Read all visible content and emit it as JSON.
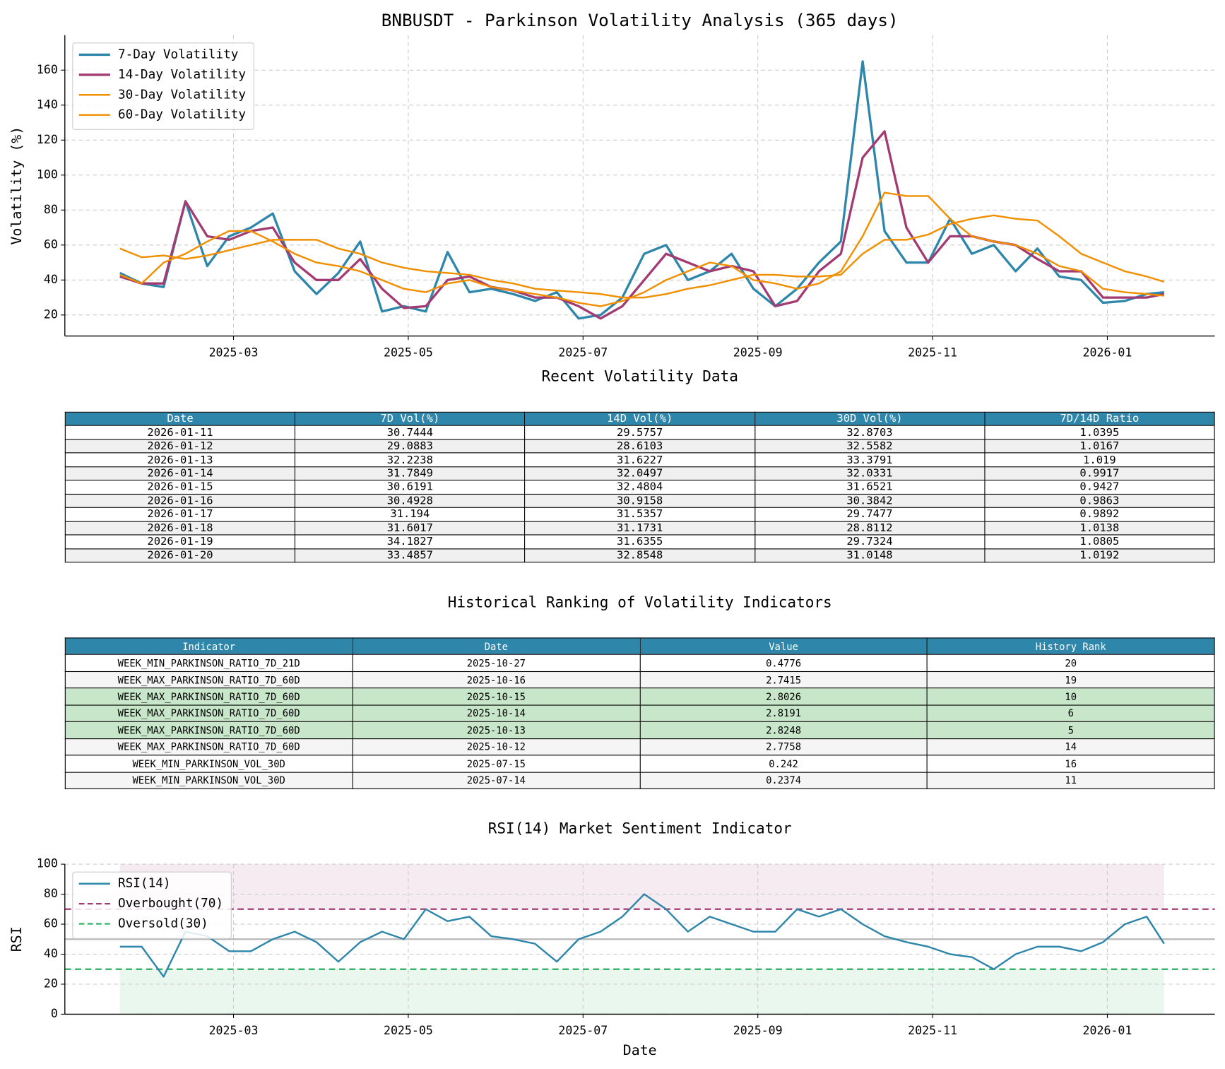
{
  "chart_data": [
    {
      "type": "line",
      "title": "BNBUSDT - Parkinson Volatility Analysis (365 days)",
      "y_label": "Volatility (%)",
      "x": [
        1.7,
        1.95,
        2.2,
        2.45,
        2.7,
        2.95,
        3.2,
        3.45,
        3.7,
        3.95,
        4.2,
        4.45,
        4.7,
        4.95,
        5.2,
        5.45,
        5.7,
        5.95,
        6.2,
        6.45,
        6.7,
        6.95,
        7.2,
        7.45,
        7.7,
        7.95,
        8.2,
        8.45,
        8.7,
        8.95,
        9.2,
        9.45,
        9.7,
        9.95,
        10.2,
        10.45,
        10.7,
        10.95,
        11.2,
        11.45,
        11.7,
        11.95,
        12.2,
        12.45,
        12.7,
        12.95,
        13.2,
        13.45,
        13.65
      ],
      "series": [
        {
          "name": "7-Day Volatility",
          "color": "#2e86ab",
          "values": [
            44,
            38,
            36,
            85,
            48,
            65,
            70,
            78,
            45,
            32,
            44,
            62,
            22,
            25,
            22,
            56,
            33,
            35,
            32,
            28,
            33,
            18,
            20,
            30,
            55,
            60,
            40,
            45,
            55,
            35,
            25,
            35,
            50,
            62,
            165,
            68,
            50,
            50,
            75,
            55,
            60,
            45,
            58,
            42,
            40,
            27,
            28,
            32,
            33
          ]
        },
        {
          "name": "14-Day Volatility",
          "color": "#a23b72",
          "values": [
            42,
            38,
            38,
            85,
            65,
            63,
            68,
            70,
            50,
            40,
            40,
            52,
            35,
            24,
            25,
            40,
            42,
            36,
            34,
            30,
            30,
            25,
            18,
            25,
            40,
            55,
            50,
            45,
            48,
            45,
            25,
            28,
            45,
            55,
            110,
            125,
            70,
            50,
            65,
            65,
            62,
            60,
            52,
            45,
            45,
            30,
            30,
            30,
            32
          ]
        },
        {
          "name": "30-Day Volatility",
          "color": "#f18f01",
          "values": [
            43,
            38,
            50,
            55,
            62,
            68,
            68,
            62,
            55,
            50,
            48,
            45,
            40,
            35,
            33,
            38,
            40,
            36,
            34,
            32,
            30,
            27,
            25,
            28,
            33,
            40,
            45,
            50,
            48,
            40,
            38,
            35,
            38,
            45,
            65,
            90,
            88,
            88,
            75,
            65,
            62,
            60,
            55,
            48,
            45,
            35,
            33,
            32,
            31
          ]
        },
        {
          "name": "60-Day Volatility",
          "color": "#f18f01",
          "values": [
            58,
            53,
            54,
            52,
            54,
            57,
            60,
            63,
            63,
            63,
            58,
            55,
            50,
            47,
            45,
            44,
            43,
            40,
            38,
            35,
            34,
            33,
            32,
            30,
            30,
            32,
            35,
            37,
            40,
            43,
            43,
            42,
            42,
            43,
            55,
            63,
            63,
            66,
            72,
            75,
            77,
            75,
            74,
            65,
            55,
            50,
            45,
            42,
            39
          ]
        }
      ],
      "xlim": [
        1.07,
        14.23
      ],
      "xticks": [
        {
          "value": 3,
          "label": "2025-03"
        },
        {
          "value": 5,
          "label": "2025-05"
        },
        {
          "value": 7,
          "label": "2025-07"
        },
        {
          "value": 9,
          "label": "2025-09"
        },
        {
          "value": 11,
          "label": "2025-11"
        },
        {
          "value": 13,
          "label": "2026-01"
        }
      ],
      "ylim": [
        8,
        180
      ],
      "yticks": [
        20,
        40,
        60,
        80,
        100,
        120,
        140,
        160
      ],
      "grid": true,
      "legend": "upper left"
    },
    {
      "type": "line",
      "title": "RSI(14) Market Sentiment Indicator",
      "x_label": "Date",
      "y_label": "RSI",
      "x": [
        1.7,
        1.95,
        2.2,
        2.45,
        2.7,
        2.95,
        3.2,
        3.45,
        3.7,
        3.95,
        4.2,
        4.45,
        4.7,
        4.95,
        5.2,
        5.45,
        5.7,
        5.95,
        6.2,
        6.45,
        6.7,
        6.95,
        7.2,
        7.45,
        7.7,
        7.95,
        8.2,
        8.45,
        8.7,
        8.95,
        9.2,
        9.45,
        9.7,
        9.95,
        10.2,
        10.45,
        10.7,
        10.95,
        11.2,
        11.45,
        11.7,
        11.95,
        12.2,
        12.45,
        12.7,
        12.95,
        13.2,
        13.45,
        13.65
      ],
      "series": [
        {
          "name": "RSI(14)",
          "color": "#2e86ab",
          "values": [
            45,
            45,
            25,
            55,
            52,
            42,
            42,
            50,
            55,
            48,
            35,
            48,
            55,
            50,
            70,
            62,
            65,
            52,
            50,
            47,
            35,
            50,
            55,
            65,
            80,
            70,
            55,
            65,
            60,
            55,
            55,
            70,
            65,
            70,
            60,
            52,
            48,
            45,
            40,
            38,
            30,
            40,
            45,
            45,
            42,
            48,
            60,
            65,
            47
          ]
        }
      ],
      "hlines": [
        {
          "name": "Overbought(70)",
          "value": 70,
          "color": "#a23b72"
        },
        {
          "name": "Oversold(30)",
          "value": 30,
          "color": "#27ae60"
        }
      ],
      "bands": [
        {
          "from": 70,
          "to": 100,
          "color": "#a23b72"
        },
        {
          "from": 0,
          "to": 30,
          "color": "#27ae60"
        }
      ],
      "midline": 50,
      "xlim": [
        1.07,
        14.23
      ],
      "xticks": [
        {
          "value": 3,
          "label": "2025-03"
        },
        {
          "value": 5,
          "label": "2025-05"
        },
        {
          "value": 7,
          "label": "2025-07"
        },
        {
          "value": 9,
          "label": "2025-09"
        },
        {
          "value": 11,
          "label": "2025-11"
        },
        {
          "value": 13,
          "label": "2026-01"
        }
      ],
      "ylim": [
        0,
        100
      ],
      "yticks": [
        0,
        20,
        40,
        60,
        80,
        100
      ],
      "grid": true,
      "legend": "upper left"
    }
  ],
  "tables": [
    {
      "title": "Recent Volatility Data",
      "columns": [
        "Date",
        "7D Vol(%)",
        "14D Vol(%)",
        "30D Vol(%)",
        "7D/14D Ratio"
      ],
      "rows": [
        [
          "2026-01-11",
          "30.7444",
          "29.5757",
          "32.8703",
          "1.0395"
        ],
        [
          "2026-01-12",
          "29.0883",
          "28.6103",
          "32.5582",
          "1.0167"
        ],
        [
          "2026-01-13",
          "32.2238",
          "31.6227",
          "33.3791",
          "1.019"
        ],
        [
          "2026-01-14",
          "31.7849",
          "32.0497",
          "32.0331",
          "0.9917"
        ],
        [
          "2026-01-15",
          "30.6191",
          "32.4804",
          "31.6521",
          "0.9427"
        ],
        [
          "2026-01-16",
          "30.4928",
          "30.9158",
          "30.3842",
          "0.9863"
        ],
        [
          "2026-01-17",
          "31.194",
          "31.5357",
          "29.7477",
          "0.9892"
        ],
        [
          "2026-01-18",
          "31.6017",
          "31.1731",
          "28.8112",
          "1.0138"
        ],
        [
          "2026-01-19",
          "34.1827",
          "31.6355",
          "29.7324",
          "1.0805"
        ],
        [
          "2026-01-20",
          "33.4857",
          "32.8548",
          "31.0148",
          "1.0192"
        ]
      ]
    },
    {
      "title": "Historical Ranking of Volatility Indicators",
      "columns": [
        "Indicator",
        "Date",
        "Value",
        "History Rank"
      ],
      "rows": [
        [
          "WEEK_MIN_PARKINSON_RATIO_7D_21D",
          "2025-10-27",
          "0.4776",
          "20"
        ],
        [
          "WEEK_MAX_PARKINSON_RATIO_7D_60D",
          "2025-10-16",
          "2.7415",
          "19"
        ],
        [
          "WEEK_MAX_PARKINSON_RATIO_7D_60D",
          "2025-10-15",
          "2.8026",
          "10"
        ],
        [
          "WEEK_MAX_PARKINSON_RATIO_7D_60D",
          "2025-10-14",
          "2.8191",
          "6"
        ],
        [
          "WEEK_MAX_PARKINSON_RATIO_7D_60D",
          "2025-10-13",
          "2.8248",
          "5"
        ],
        [
          "WEEK_MAX_PARKINSON_RATIO_7D_60D",
          "2025-10-12",
          "2.7758",
          "14"
        ],
        [
          "WEEK_MIN_PARKINSON_VOL_30D",
          "2025-07-15",
          "0.242",
          "16"
        ],
        [
          "WEEK_MIN_PARKINSON_VOL_30D",
          "2025-07-14",
          "0.2374",
          "11"
        ]
      ]
    }
  ]
}
